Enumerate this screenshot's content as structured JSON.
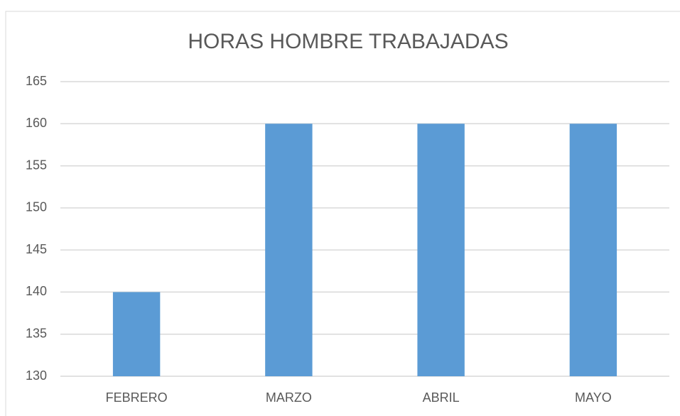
{
  "chart_data": {
    "type": "bar",
    "title": "HORAS HOMBRE TRABAJADAS",
    "categories": [
      "FEBRERO",
      "MARZO",
      "ABRIL",
      "MAYO"
    ],
    "values": [
      140,
      160,
      160,
      160
    ],
    "color": "#5b9bd5",
    "ylim": [
      130,
      165
    ],
    "yticks": [
      130,
      135,
      140,
      145,
      150,
      155,
      160,
      165
    ],
    "grid": true
  }
}
